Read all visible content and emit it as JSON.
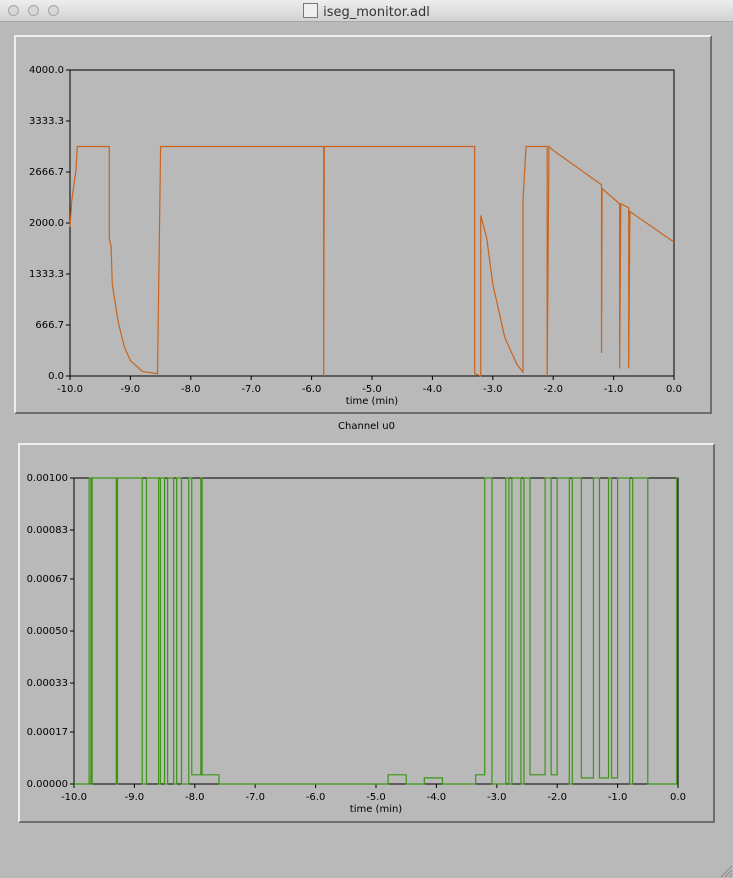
{
  "window": {
    "title": "iseg_monitor.adl"
  },
  "chart_data": [
    {
      "type": "line",
      "color": "#c8641e",
      "xlabel": "time (min)",
      "xlim": [
        -10,
        0
      ],
      "ylim": [
        0,
        4000
      ],
      "xticks": [
        {
          "value": -10,
          "label": "-10.0"
        },
        {
          "value": -9,
          "label": "-9.0"
        },
        {
          "value": -8,
          "label": "-8.0"
        },
        {
          "value": -7,
          "label": "-7.0"
        },
        {
          "value": -6,
          "label": "-6.0"
        },
        {
          "value": -5,
          "label": "-5.0"
        },
        {
          "value": -4,
          "label": "-4.0"
        },
        {
          "value": -3,
          "label": "-3.0"
        },
        {
          "value": -2,
          "label": "-2.0"
        },
        {
          "value": -1,
          "label": "-1.0"
        },
        {
          "value": 0,
          "label": "0.0"
        }
      ],
      "yticks": [
        {
          "value": 0,
          "label": "0.0"
        },
        666.7,
        1333.3,
        {
          "value": 2000,
          "label": "2000.0"
        },
        2666.7,
        3333.3,
        {
          "value": 4000,
          "label": "4000.0"
        }
      ],
      "x": [
        -10,
        -9.97,
        -9.9,
        -9.88,
        -9.35,
        -9.35,
        -9.32,
        -9.3,
        -9.2,
        -9.1,
        -9.0,
        -8.8,
        -8.55,
        -8.55,
        -8.5,
        -5.8,
        -5.8,
        -5.79,
        -3.3,
        -3.3,
        -3.2,
        -3.2,
        -3.1,
        -3.0,
        -2.8,
        -2.6,
        -2.5,
        -2.5,
        -2.45,
        -2.1,
        -2.1,
        -2.07,
        -2.0,
        -1.2,
        -1.2,
        -1.19,
        -0.9,
        -0.9,
        -0.88,
        -0.75,
        -0.75,
        -0.73,
        0
      ],
      "values": [
        1950,
        2300,
        2700,
        3000,
        3000,
        1800,
        1700,
        1200,
        700,
        380,
        200,
        60,
        30,
        100,
        3000,
        3000,
        0,
        3000,
        3000,
        30,
        0,
        2100,
        1800,
        1200,
        500,
        150,
        50,
        2300,
        3000,
        3000,
        0,
        3000,
        2950,
        2500,
        300,
        2450,
        2250,
        100,
        2250,
        2200,
        100,
        2150,
        1750
      ]
    },
    {
      "type": "line",
      "title": "Channel u0",
      "color": "#3c9614",
      "xlabel": "time (min)",
      "xlim": [
        -10,
        0
      ],
      "ylim": [
        0,
        0.001
      ],
      "xticks": [
        {
          "value": -10,
          "label": "-10.0"
        },
        {
          "value": -9,
          "label": "-9.0"
        },
        {
          "value": -8,
          "label": "-8.0"
        },
        {
          "value": -7,
          "label": "-7.0"
        },
        {
          "value": -6,
          "label": "-6.0"
        },
        {
          "value": -5,
          "label": "-5.0"
        },
        {
          "value": -4,
          "label": "-4.0"
        },
        {
          "value": -3,
          "label": "-3.0"
        },
        {
          "value": -2,
          "label": "-2.0"
        },
        {
          "value": -1,
          "label": "-1.0"
        },
        {
          "value": 0,
          "label": "0.0"
        }
      ],
      "yticks": [
        {
          "value": 0,
          "label": "0.00000"
        },
        0.00017,
        0.00033,
        {
          "value": 0.0005,
          "label": "0.00050"
        },
        0.00067,
        0.00083,
        {
          "value": 0.001,
          "label": "0.00100"
        }
      ],
      "x": [
        -10,
        -9.75,
        -9.75,
        -9.72,
        -9.72,
        -9.7,
        -9.7,
        -9.3,
        -9.3,
        -9.28,
        -9.28,
        -8.87,
        -8.87,
        -8.8,
        -8.8,
        -8.6,
        -8.6,
        -8.57,
        -8.57,
        -8.5,
        -8.5,
        -8.45,
        -8.45,
        -8.35,
        -8.35,
        -8.3,
        -8.3,
        -8.22,
        -8.22,
        -8.1,
        -8.1,
        -8.05,
        -8.05,
        -7.9,
        -7.9,
        -7.88,
        -7.88,
        -7.6,
        -7.6,
        -4.8,
        -4.8,
        -4.5,
        -4.5,
        -4.2,
        -4.2,
        -3.9,
        -3.9,
        -3.35,
        -3.35,
        -3.2,
        -3.2,
        -3.08,
        -3.08,
        -2.85,
        -2.85,
        -2.8,
        -2.8,
        -2.75,
        -2.75,
        -2.6,
        -2.6,
        -2.55,
        -2.55,
        -2.45,
        -2.45,
        -2.2,
        -2.2,
        -2.1,
        -2.1,
        -2.0,
        -2.0,
        -1.8,
        -1.8,
        -1.75,
        -1.75,
        -1.6,
        -1.6,
        -1.4,
        -1.4,
        -1.3,
        -1.3,
        -1.15,
        -1.15,
        -1.1,
        -1.1,
        -1.0,
        -1.0,
        -0.8,
        -0.8,
        -0.75,
        -0.75,
        -0.5,
        -0.5,
        -0.02,
        -0.02,
        0
      ],
      "values": [
        0,
        0,
        0.001,
        0.001,
        0,
        0,
        0.001,
        0.001,
        0,
        0,
        0.001,
        0.001,
        0,
        0,
        0.001,
        0.001,
        0,
        0,
        0.001,
        0.001,
        0,
        0,
        0.001,
        0.001,
        0,
        0,
        0.001,
        0.001,
        0,
        0,
        0.001,
        0.001,
        3e-05,
        3e-05,
        0.001,
        0.001,
        3e-05,
        3e-05,
        0,
        0,
        3e-05,
        3e-05,
        0,
        0,
        2e-05,
        2e-05,
        0,
        0,
        3e-05,
        3e-05,
        0.001,
        0.001,
        0,
        0,
        0.001,
        0.001,
        0,
        0,
        0.001,
        0.001,
        0,
        0,
        0.001,
        0.001,
        3e-05,
        3e-05,
        0.001,
        0.001,
        3e-05,
        3e-05,
        0.001,
        0.001,
        0,
        0,
        0.001,
        0.001,
        2e-05,
        2e-05,
        0.001,
        0.001,
        2e-05,
        2e-05,
        0.001,
        0.001,
        2e-05,
        2e-05,
        0.001,
        0.001,
        0,
        0,
        0.001,
        0.001,
        0,
        0,
        0.001,
        0.001
      ]
    }
  ]
}
